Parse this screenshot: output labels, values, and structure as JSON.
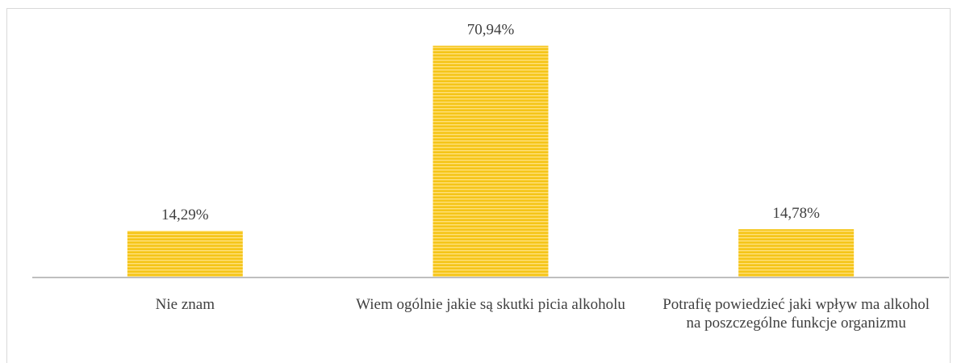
{
  "chart_data": {
    "type": "bar",
    "categories": [
      "Nie znam",
      "Wiem ogólnie jakie są skutki picia alkoholu",
      "Potrafię powiedzieć jaki wpływ ma alkohol na poszczególne funkcje organizmu"
    ],
    "values": [
      14.29,
      70.94,
      14.78
    ],
    "data_labels": [
      "14,29%",
      "70,94%",
      "14,78%"
    ],
    "ylim": [
      0,
      80
    ],
    "grid": false,
    "legend": "none",
    "bar_color": "#F5C518",
    "bar_stripe_color": "#FFE07A",
    "axis_color": "#bfbfbf",
    "label_color": "#404040"
  }
}
